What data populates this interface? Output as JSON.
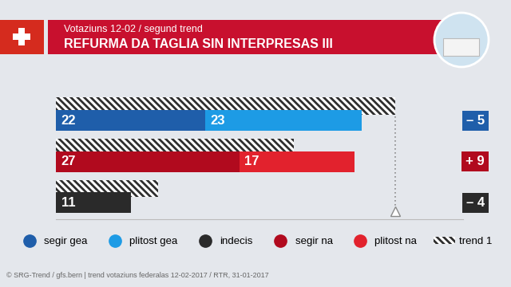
{
  "chart_data": {
    "type": "bar",
    "orientation": "horizontal",
    "stacked": true,
    "data_labels": true,
    "tick_labels": false,
    "legend": "bottom",
    "subtitle": "Votaziuns 12-02 / segund trend",
    "title": "REFURMA DA TAGLIA SIN INTERPRESAS III",
    "categories": [
      null,
      null,
      null
    ],
    "series": [
      {
        "name": "segir gea",
        "color": "#1f5eaa",
        "values": [
          22,
          null,
          null
        ]
      },
      {
        "name": "plitost gea",
        "color": "#1d9be5",
        "values": [
          23,
          null,
          null
        ]
      },
      {
        "name": "indecis",
        "color": "#2a2a2a",
        "values": [
          null,
          null,
          11
        ]
      },
      {
        "name": "segir na",
        "color": "#b10a1e",
        "values": [
          null,
          27,
          null
        ]
      },
      {
        "name": "plitost na",
        "color": "#e2222d",
        "values": [
          null,
          17,
          null
        ]
      },
      {
        "name": "trend 1",
        "type": "hatched_bar",
        "color": "#2e2e2e",
        "values": [
          50,
          35,
          15
        ]
      }
    ],
    "change_labels": [
      "– 5",
      "+ 9",
      "– 4"
    ],
    "reference_line": 50,
    "xlim": [
      0,
      60
    ],
    "source": "© SRG-Trend / gfs.bern | trend votaziuns federalas 12-02-2017 / RTR, 31-01-2017"
  }
}
